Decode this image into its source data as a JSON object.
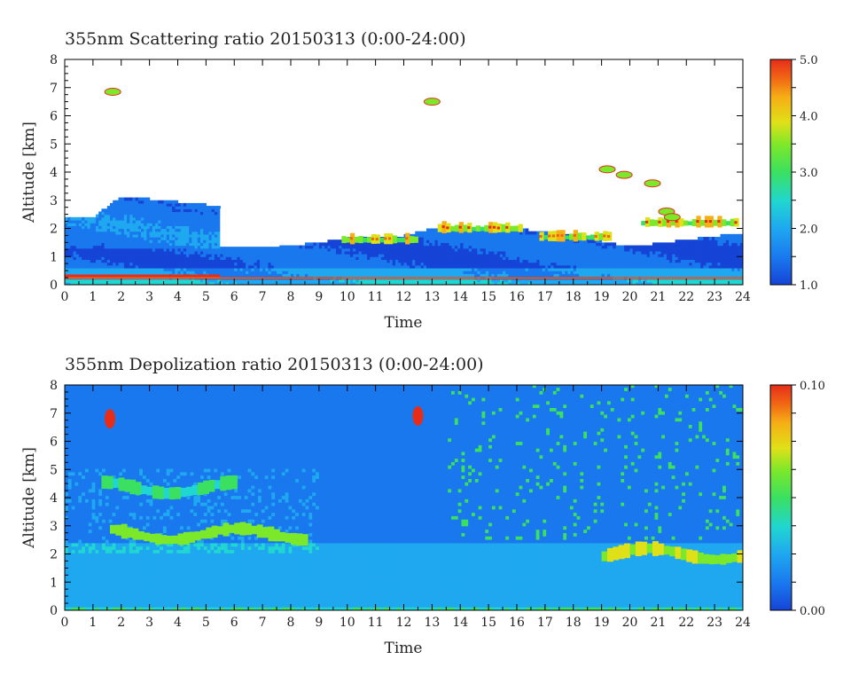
{
  "chart_data": [
    {
      "type": "heatmap",
      "title": "355nm Scattering ratio  20150313 (0:00-24:00)",
      "xlabel": "Time",
      "ylabel": "Altitude [km]",
      "xlim": [
        0,
        24
      ],
      "ylim": [
        0,
        8
      ],
      "x_ticks": [
        "0",
        "1",
        "2",
        "3",
        "4",
        "5",
        "6",
        "7",
        "8",
        "9",
        "10",
        "11",
        "12",
        "13",
        "14",
        "15",
        "16",
        "17",
        "18",
        "19",
        "20",
        "21",
        "22",
        "23",
        "24"
      ],
      "y_ticks": [
        "0",
        "1",
        "2",
        "3",
        "4",
        "5",
        "6",
        "7",
        "8"
      ],
      "colorbar": {
        "min": 1.0,
        "max": 5.0,
        "tick_labels": [
          "1.0",
          "2.0",
          "3.0",
          "4.0",
          "5.0"
        ]
      },
      "features": {
        "boundary_layer_top_km": [
          {
            "t": 0,
            "z": 2.3
          },
          {
            "t": 1,
            "z": 2.35
          },
          {
            "t": 2,
            "z": 3.1
          },
          {
            "t": 3,
            "z": 3.0
          },
          {
            "t": 4,
            "z": 2.9
          },
          {
            "t": 5,
            "z": 2.8
          },
          {
            "t": 5.5,
            "z": 2.7
          },
          {
            "t": 6,
            "z": 1.3
          },
          {
            "t": 8,
            "z": 1.35
          },
          {
            "t": 9,
            "z": 1.45
          },
          {
            "t": 10,
            "z": 1.6
          },
          {
            "t": 12,
            "z": 1.7
          },
          {
            "t": 13,
            "z": 1.95
          },
          {
            "t": 16,
            "z": 1.95
          },
          {
            "t": 18,
            "z": 1.7
          },
          {
            "t": 20,
            "z": 1.3
          },
          {
            "t": 22,
            "z": 1.55
          },
          {
            "t": 24,
            "z": 1.8
          }
        ],
        "strong_layers": [
          {
            "t0": 9.8,
            "t1": 12.5,
            "z": 1.55,
            "value": 4.2
          },
          {
            "t0": 13.2,
            "t1": 16.2,
            "z": 1.95,
            "value": 4.8
          },
          {
            "t0": 16.8,
            "t1": 19.3,
            "z": 1.65,
            "value": 4.5
          },
          {
            "t0": 20.4,
            "t1": 23.8,
            "z": 2.15,
            "value": 4.6
          },
          {
            "t0": 0,
            "t1": 5.5,
            "z": 0.3,
            "value": 5.0
          }
        ]
      }
    },
    {
      "type": "heatmap",
      "title": "355nm Depolization ratio  20150313 (0:00-24:00)",
      "xlabel": "Time",
      "ylabel": "Altitude [km]",
      "xlim": [
        0,
        24
      ],
      "ylim": [
        0,
        8
      ],
      "x_ticks": [
        "0",
        "1",
        "2",
        "3",
        "4",
        "5",
        "6",
        "7",
        "8",
        "9",
        "10",
        "11",
        "12",
        "13",
        "14",
        "15",
        "16",
        "17",
        "18",
        "19",
        "20",
        "21",
        "22",
        "23",
        "24"
      ],
      "y_ticks": [
        "0",
        "1",
        "2",
        "3",
        "4",
        "5",
        "6",
        "7",
        "8"
      ],
      "colorbar": {
        "min": 0.0,
        "max": 0.1,
        "tick_labels": [
          "0.00",
          "0.10"
        ]
      },
      "features": {
        "dust_layers": [
          {
            "t0": 1.6,
            "t1": 8.5,
            "z": 2.7,
            "value": 0.055
          },
          {
            "t0": 1.3,
            "t1": 6.0,
            "z": 4.35,
            "value": 0.04
          },
          {
            "t0": 19.0,
            "t1": 24.0,
            "z": 2.0,
            "value": 0.06
          }
        ],
        "cirrus": [
          {
            "t": 12.5,
            "z": 6.9,
            "value": 0.1
          },
          {
            "t": 1.6,
            "z": 6.8,
            "value": 0.09
          }
        ]
      }
    }
  ],
  "colors": {
    "colormap": [
      "#1544d6",
      "#1a78ee",
      "#1fa8f0",
      "#20d6d0",
      "#3be060",
      "#7ce82a",
      "#e0e018",
      "#f6b016",
      "#f06414",
      "#e62d1a"
    ]
  }
}
